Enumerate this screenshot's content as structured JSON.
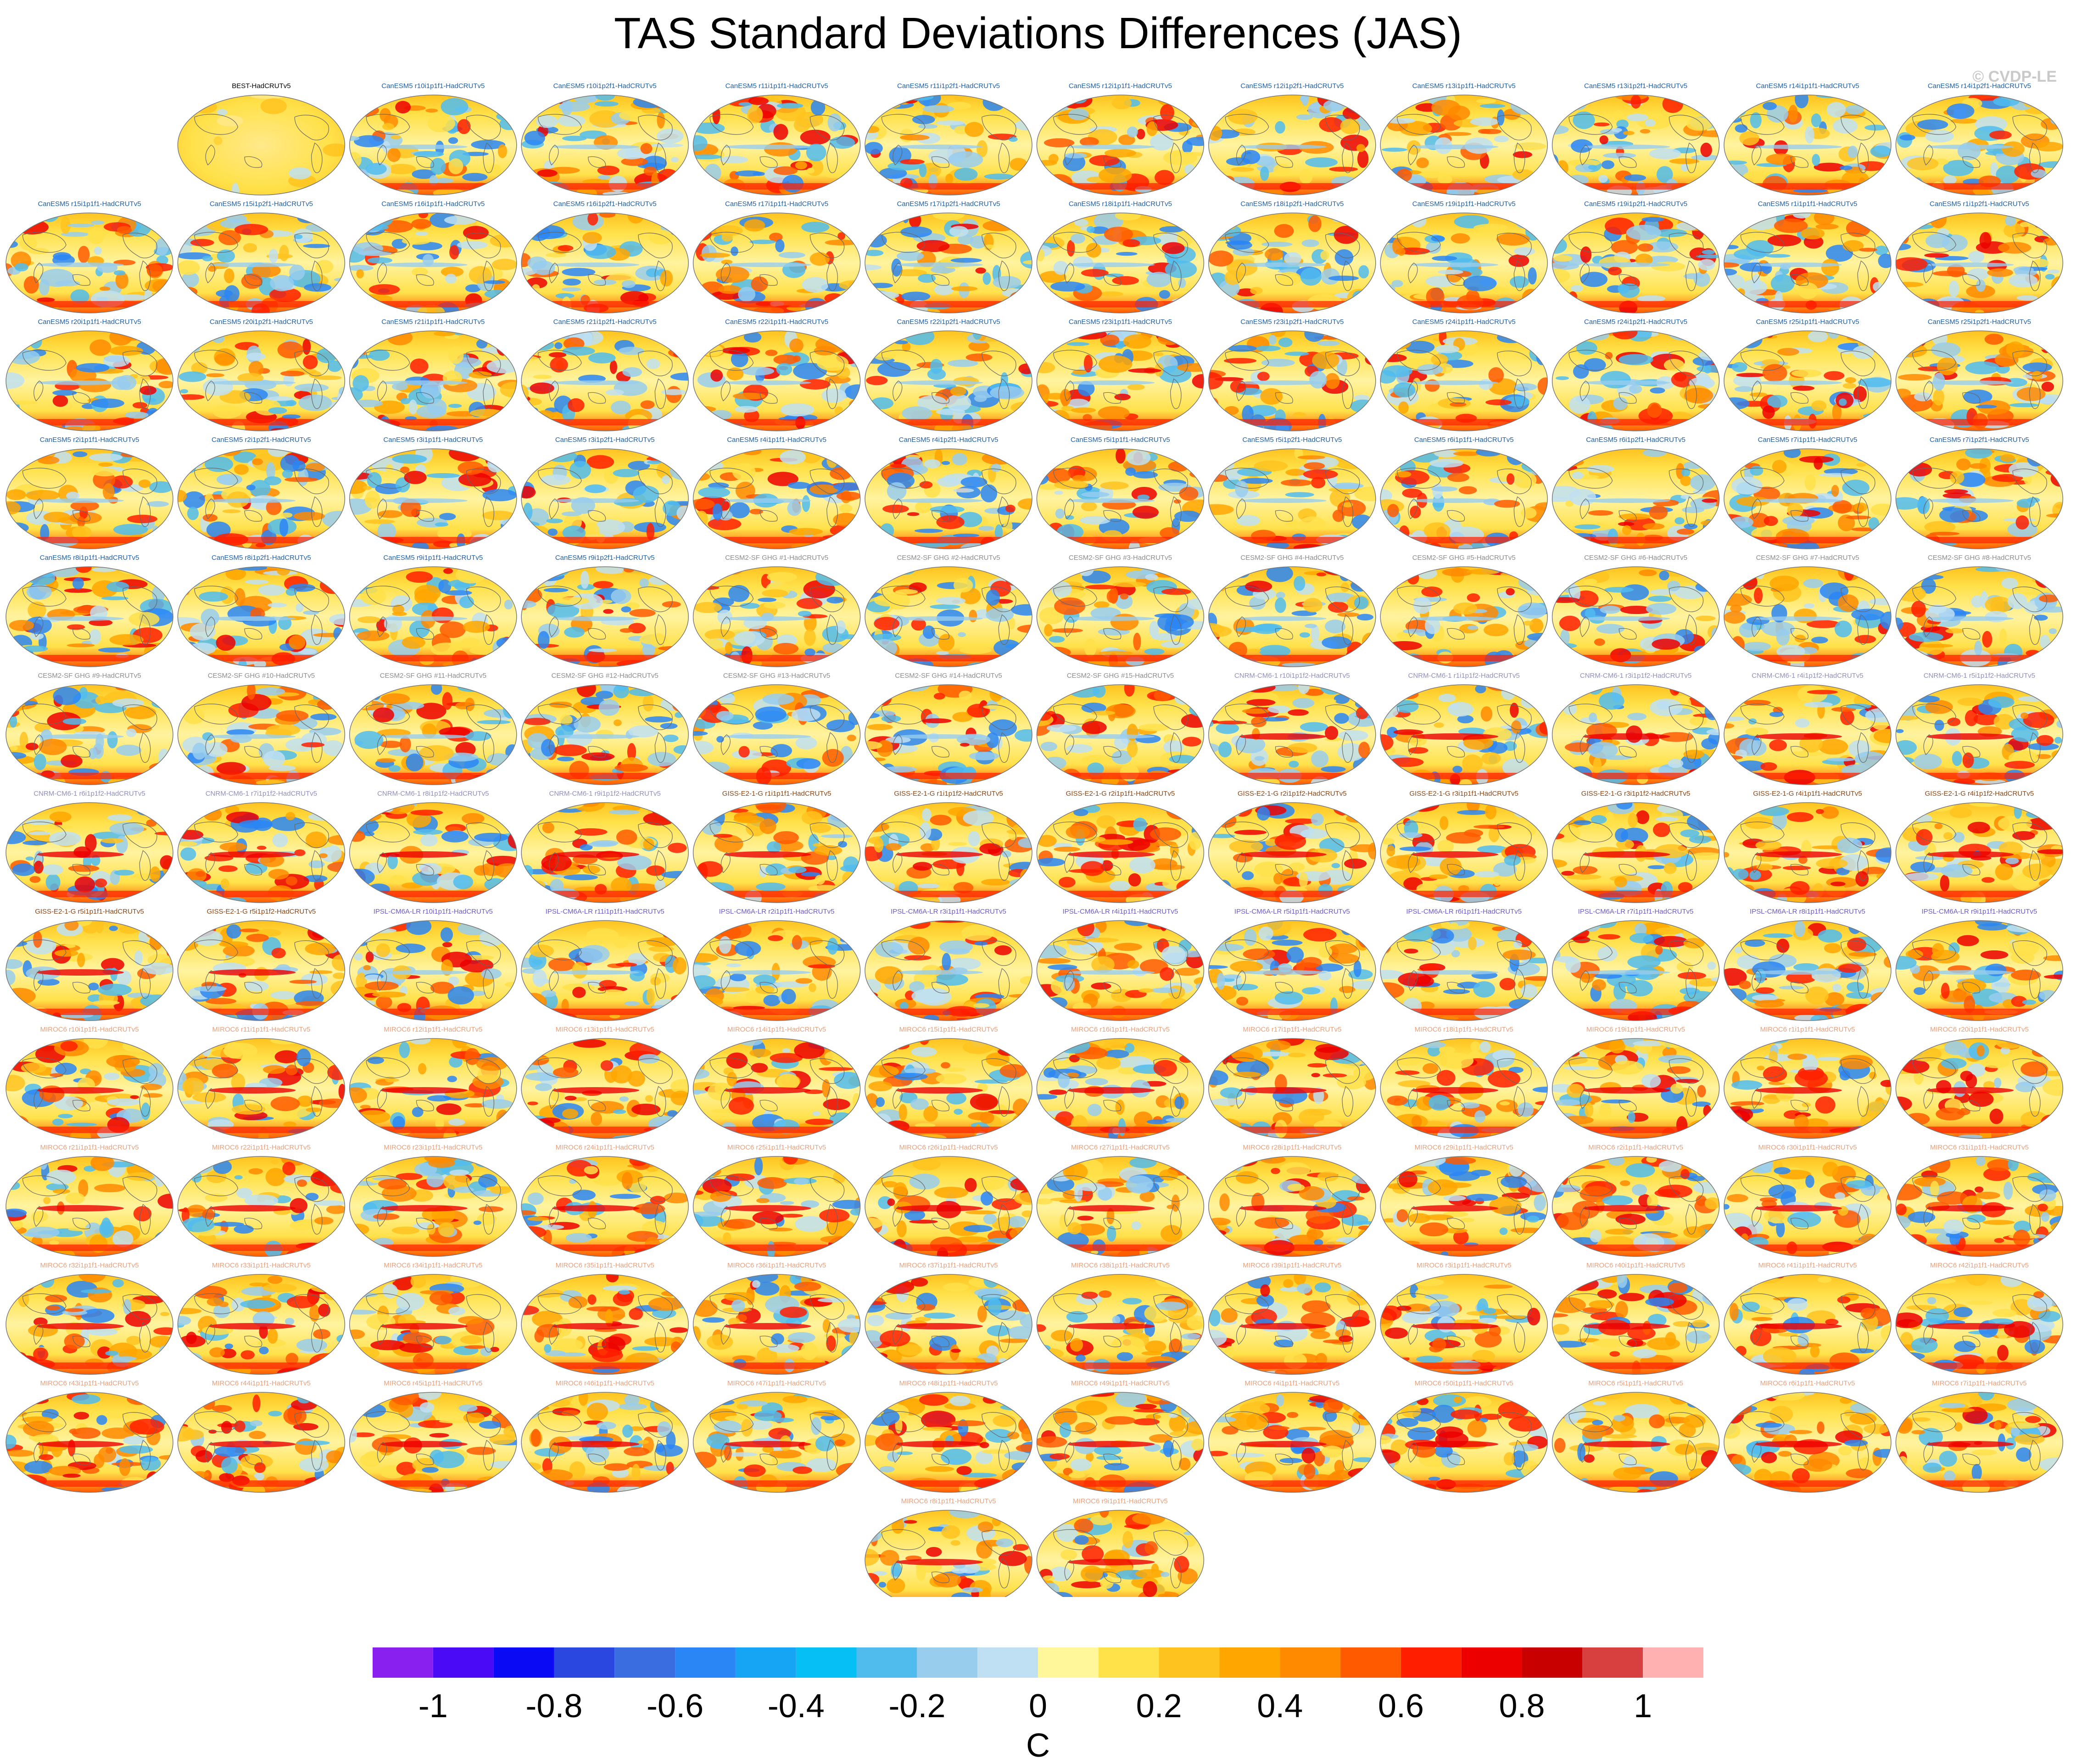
{
  "header": {
    "title": "TAS Standard Deviations Differences (JAS)",
    "credit": "© CVDP-LE"
  },
  "chart_data": {
    "type": "heatmap",
    "title": "TAS Standard Deviations Differences (JAS)",
    "panel_rows": [
      {
        "panels": [
          {
            "label": "BEST-HadCRUTv5",
            "model": "BEST"
          },
          {
            "label": "CanESM5 r10i1p1f1-HadCRUTv5",
            "model": "CanESM5"
          },
          {
            "label": "CanESM5 r10i1p2f1-HadCRUTv5",
            "model": "CanESM5"
          },
          {
            "label": "CanESM5 r11i1p1f1-HadCRUTv5",
            "model": "CanESM5"
          },
          {
            "label": "CanESM5 r11i1p2f1-HadCRUTv5",
            "model": "CanESM5"
          },
          {
            "label": "CanESM5 r12i1p1f1-HadCRUTv5",
            "model": "CanESM5"
          },
          {
            "label": "CanESM5 r12i1p2f1-HadCRUTv5",
            "model": "CanESM5"
          },
          {
            "label": "CanESM5 r13i1p1f1-HadCRUTv5",
            "model": "CanESM5"
          },
          {
            "label": "CanESM5 r13i1p2f1-HadCRUTv5",
            "model": "CanESM5"
          },
          {
            "label": "CanESM5 r14i1p1f1-HadCRUTv5",
            "model": "CanESM5"
          },
          {
            "label": "CanESM5 r14i1p2f1-HadCRUTv5",
            "model": "CanESM5"
          }
        ]
      },
      {
        "panels": [
          {
            "label": "CanESM5 r15i1p1f1-HadCRUTv5",
            "model": "CanESM5"
          },
          {
            "label": "CanESM5 r15i1p2f1-HadCRUTv5",
            "model": "CanESM5"
          },
          {
            "label": "CanESM5 r16i1p1f1-HadCRUTv5",
            "model": "CanESM5"
          },
          {
            "label": "CanESM5 r16i1p2f1-HadCRUTv5",
            "model": "CanESM5"
          },
          {
            "label": "CanESM5 r17i1p1f1-HadCRUTv5",
            "model": "CanESM5"
          },
          {
            "label": "CanESM5 r17i1p2f1-HadCRUTv5",
            "model": "CanESM5"
          },
          {
            "label": "CanESM5 r18i1p1f1-HadCRUTv5",
            "model": "CanESM5"
          },
          {
            "label": "CanESM5 r18i1p2f1-HadCRUTv5",
            "model": "CanESM5"
          },
          {
            "label": "CanESM5 r19i1p1f1-HadCRUTv5",
            "model": "CanESM5"
          },
          {
            "label": "CanESM5 r19i1p2f1-HadCRUTv5",
            "model": "CanESM5"
          },
          {
            "label": "CanESM5 r1i1p1f1-HadCRUTv5",
            "model": "CanESM5"
          },
          {
            "label": "CanESM5 r1i1p2f1-HadCRUTv5",
            "model": "CanESM5"
          }
        ]
      },
      {
        "panels": [
          {
            "label": "CanESM5 r20i1p1f1-HadCRUTv5",
            "model": "CanESM5"
          },
          {
            "label": "CanESM5 r20i1p2f1-HadCRUTv5",
            "model": "CanESM5"
          },
          {
            "label": "CanESM5 r21i1p1f1-HadCRUTv5",
            "model": "CanESM5"
          },
          {
            "label": "CanESM5 r21i1p2f1-HadCRUTv5",
            "model": "CanESM5"
          },
          {
            "label": "CanESM5 r22i1p1f1-HadCRUTv5",
            "model": "CanESM5"
          },
          {
            "label": "CanESM5 r22i1p2f1-HadCRUTv5",
            "model": "CanESM5"
          },
          {
            "label": "CanESM5 r23i1p1f1-HadCRUTv5",
            "model": "CanESM5"
          },
          {
            "label": "CanESM5 r23i1p2f1-HadCRUTv5",
            "model": "CanESM5"
          },
          {
            "label": "CanESM5 r24i1p1f1-HadCRUTv5",
            "model": "CanESM5"
          },
          {
            "label": "CanESM5 r24i1p2f1-HadCRUTv5",
            "model": "CanESM5"
          },
          {
            "label": "CanESM5 r25i1p1f1-HadCRUTv5",
            "model": "CanESM5"
          },
          {
            "label": "CanESM5 r25i1p2f1-HadCRUTv5",
            "model": "CanESM5"
          }
        ]
      },
      {
        "panels": [
          {
            "label": "CanESM5 r2i1p1f1-HadCRUTv5",
            "model": "CanESM5"
          },
          {
            "label": "CanESM5 r2i1p2f1-HadCRUTv5",
            "model": "CanESM5"
          },
          {
            "label": "CanESM5 r3i1p1f1-HadCRUTv5",
            "model": "CanESM5"
          },
          {
            "label": "CanESM5 r3i1p2f1-HadCRUTv5",
            "model": "CanESM5"
          },
          {
            "label": "CanESM5 r4i1p1f1-HadCRUTv5",
            "model": "CanESM5"
          },
          {
            "label": "CanESM5 r4i1p2f1-HadCRUTv5",
            "model": "CanESM5"
          },
          {
            "label": "CanESM5 r5i1p1f1-HadCRUTv5",
            "model": "CanESM5"
          },
          {
            "label": "CanESM5 r5i1p2f1-HadCRUTv5",
            "model": "CanESM5"
          },
          {
            "label": "CanESM5 r6i1p1f1-HadCRUTv5",
            "model": "CanESM5"
          },
          {
            "label": "CanESM5 r6i1p2f1-HadCRUTv5",
            "model": "CanESM5"
          },
          {
            "label": "CanESM5 r7i1p1f1-HadCRUTv5",
            "model": "CanESM5"
          },
          {
            "label": "CanESM5 r7i1p2f1-HadCRUTv5",
            "model": "CanESM5"
          }
        ]
      },
      {
        "panels": [
          {
            "label": "CanESM5 r8i1p1f1-HadCRUTv5",
            "model": "CanESM5"
          },
          {
            "label": "CanESM5 r8i1p2f1-HadCRUTv5",
            "model": "CanESM5"
          },
          {
            "label": "CanESM5 r9i1p1f1-HadCRUTv5",
            "model": "CanESM5"
          },
          {
            "label": "CanESM5 r9i1p2f1-HadCRUTv5",
            "model": "CanESM5"
          },
          {
            "label": "CESM2-SF GHG #1-HadCRUTv5",
            "model": "CESM2"
          },
          {
            "label": "CESM2-SF GHG #2-HadCRUTv5",
            "model": "CESM2"
          },
          {
            "label": "CESM2-SF GHG #3-HadCRUTv5",
            "model": "CESM2"
          },
          {
            "label": "CESM2-SF GHG #4-HadCRUTv5",
            "model": "CESM2"
          },
          {
            "label": "CESM2-SF GHG #5-HadCRUTv5",
            "model": "CESM2"
          },
          {
            "label": "CESM2-SF GHG #6-HadCRUTv5",
            "model": "CESM2"
          },
          {
            "label": "CESM2-SF GHG #7-HadCRUTv5",
            "model": "CESM2"
          },
          {
            "label": "CESM2-SF GHG #8-HadCRUTv5",
            "model": "CESM2"
          }
        ]
      },
      {
        "panels": [
          {
            "label": "CESM2-SF GHG #9-HadCRUTv5",
            "model": "CESM2"
          },
          {
            "label": "CESM2-SF GHG #10-HadCRUTv5",
            "model": "CESM2"
          },
          {
            "label": "CESM2-SF GHG #11-HadCRUTv5",
            "model": "CESM2"
          },
          {
            "label": "CESM2-SF GHG #12-HadCRUTv5",
            "model": "CESM2"
          },
          {
            "label": "CESM2-SF GHG #13-HadCRUTv5",
            "model": "CESM2"
          },
          {
            "label": "CESM2-SF GHG #14-HadCRUTv5",
            "model": "CESM2"
          },
          {
            "label": "CESM2-SF GHG #15-HadCRUTv5",
            "model": "CESM2"
          },
          {
            "label": "CNRM-CM6-1 r10i1p1f2-HadCRUTv5",
            "model": "CNRM"
          },
          {
            "label": "CNRM-CM6-1 r1i1p1f2-HadCRUTv5",
            "model": "CNRM"
          },
          {
            "label": "CNRM-CM6-1 r3i1p1f2-HadCRUTv5",
            "model": "CNRM"
          },
          {
            "label": "CNRM-CM6-1 r4i1p1f2-HadCRUTv5",
            "model": "CNRM"
          },
          {
            "label": "CNRM-CM6-1 r5i1p1f2-HadCRUTv5",
            "model": "CNRM"
          }
        ]
      },
      {
        "panels": [
          {
            "label": "CNRM-CM6-1 r6i1p1f2-HadCRUTv5",
            "model": "CNRM"
          },
          {
            "label": "CNRM-CM6-1 r7i1p1f2-HadCRUTv5",
            "model": "CNRM"
          },
          {
            "label": "CNRM-CM6-1 r8i1p1f2-HadCRUTv5",
            "model": "CNRM"
          },
          {
            "label": "CNRM-CM6-1 r9i1p1f2-HadCRUTv5",
            "model": "CNRM"
          },
          {
            "label": "GISS-E2-1-G r1i1p1f1-HadCRUTv5",
            "model": "GISS"
          },
          {
            "label": "GISS-E2-1-G r1i1p1f2-HadCRUTv5",
            "model": "GISS"
          },
          {
            "label": "GISS-E2-1-G r2i1p1f1-HadCRUTv5",
            "model": "GISS"
          },
          {
            "label": "GISS-E2-1-G r2i1p1f2-HadCRUTv5",
            "model": "GISS"
          },
          {
            "label": "GISS-E2-1-G r3i1p1f1-HadCRUTv5",
            "model": "GISS"
          },
          {
            "label": "GISS-E2-1-G r3i1p1f2-HadCRUTv5",
            "model": "GISS"
          },
          {
            "label": "GISS-E2-1-G r4i1p1f1-HadCRUTv5",
            "model": "GISS"
          },
          {
            "label": "GISS-E2-1-G r4i1p1f2-HadCRUTv5",
            "model": "GISS"
          }
        ]
      },
      {
        "panels": [
          {
            "label": "GISS-E2-1-G r5i1p1f1-HadCRUTv5",
            "model": "GISS"
          },
          {
            "label": "GISS-E2-1-G r5i1p1f2-HadCRUTv5",
            "model": "GISS"
          },
          {
            "label": "IPSL-CM6A-LR r10i1p1f1-HadCRUTv5",
            "model": "IPSL"
          },
          {
            "label": "IPSL-CM6A-LR r11i1p1f1-HadCRUTv5",
            "model": "IPSL"
          },
          {
            "label": "IPSL-CM6A-LR r2i1p1f1-HadCRUTv5",
            "model": "IPSL"
          },
          {
            "label": "IPSL-CM6A-LR r3i1p1f1-HadCRUTv5",
            "model": "IPSL"
          },
          {
            "label": "IPSL-CM6A-LR r4i1p1f1-HadCRUTv5",
            "model": "IPSL"
          },
          {
            "label": "IPSL-CM6A-LR r5i1p1f1-HadCRUTv5",
            "model": "IPSL"
          },
          {
            "label": "IPSL-CM6A-LR r6i1p1f1-HadCRUTv5",
            "model": "IPSL"
          },
          {
            "label": "IPSL-CM6A-LR r7i1p1f1-HadCRUTv5",
            "model": "IPSL"
          },
          {
            "label": "IPSL-CM6A-LR r8i1p1f1-HadCRUTv5",
            "model": "IPSL"
          },
          {
            "label": "IPSL-CM6A-LR r9i1p1f1-HadCRUTv5",
            "model": "IPSL"
          }
        ]
      },
      {
        "panels": [
          {
            "label": "MIROC6 r10i1p1f1-HadCRUTv5",
            "model": "MIROC6"
          },
          {
            "label": "MIROC6 r11i1p1f1-HadCRUTv5",
            "model": "MIROC6"
          },
          {
            "label": "MIROC6 r12i1p1f1-HadCRUTv5",
            "model": "MIROC6"
          },
          {
            "label": "MIROC6 r13i1p1f1-HadCRUTv5",
            "model": "MIROC6"
          },
          {
            "label": "MIROC6 r14i1p1f1-HadCRUTv5",
            "model": "MIROC6"
          },
          {
            "label": "MIROC6 r15i1p1f1-HadCRUTv5",
            "model": "MIROC6"
          },
          {
            "label": "MIROC6 r16i1p1f1-HadCRUTv5",
            "model": "MIROC6"
          },
          {
            "label": "MIROC6 r17i1p1f1-HadCRUTv5",
            "model": "MIROC6"
          },
          {
            "label": "MIROC6 r18i1p1f1-HadCRUTv5",
            "model": "MIROC6"
          },
          {
            "label": "MIROC6 r19i1p1f1-HadCRUTv5",
            "model": "MIROC6"
          },
          {
            "label": "MIROC6 r1i1p1f1-HadCRUTv5",
            "model": "MIROC6"
          },
          {
            "label": "MIROC6 r20i1p1f1-HadCRUTv5",
            "model": "MIROC6"
          }
        ]
      },
      {
        "panels": [
          {
            "label": "MIROC6 r21i1p1f1-HadCRUTv5",
            "model": "MIROC6"
          },
          {
            "label": "MIROC6 r22i1p1f1-HadCRUTv5",
            "model": "MIROC6"
          },
          {
            "label": "MIROC6 r23i1p1f1-HadCRUTv5",
            "model": "MIROC6"
          },
          {
            "label": "MIROC6 r24i1p1f1-HadCRUTv5",
            "model": "MIROC6"
          },
          {
            "label": "MIROC6 r25i1p1f1-HadCRUTv5",
            "model": "MIROC6"
          },
          {
            "label": "MIROC6 r26i1p1f1-HadCRUTv5",
            "model": "MIROC6"
          },
          {
            "label": "MIROC6 r27i1p1f1-HadCRUTv5",
            "model": "MIROC6"
          },
          {
            "label": "MIROC6 r28i1p1f1-HadCRUTv5",
            "model": "MIROC6"
          },
          {
            "label": "MIROC6 r29i1p1f1-HadCRUTv5",
            "model": "MIROC6"
          },
          {
            "label": "MIROC6 r2i1p1f1-HadCRUTv5",
            "model": "MIROC6"
          },
          {
            "label": "MIROC6 r30i1p1f1-HadCRUTv5",
            "model": "MIROC6"
          },
          {
            "label": "MIROC6 r31i1p1f1-HadCRUTv5",
            "model": "MIROC6"
          }
        ]
      },
      {
        "panels": [
          {
            "label": "MIROC6 r32i1p1f1-HadCRUTv5",
            "model": "MIROC6"
          },
          {
            "label": "MIROC6 r33i1p1f1-HadCRUTv5",
            "model": "MIROC6"
          },
          {
            "label": "MIROC6 r34i1p1f1-HadCRUTv5",
            "model": "MIROC6"
          },
          {
            "label": "MIROC6 r35i1p1f1-HadCRUTv5",
            "model": "MIROC6"
          },
          {
            "label": "MIROC6 r36i1p1f1-HadCRUTv5",
            "model": "MIROC6"
          },
          {
            "label": "MIROC6 r37i1p1f1-HadCRUTv5",
            "model": "MIROC6"
          },
          {
            "label": "MIROC6 r38i1p1f1-HadCRUTv5",
            "model": "MIROC6"
          },
          {
            "label": "MIROC6 r39i1p1f1-HadCRUTv5",
            "model": "MIROC6"
          },
          {
            "label": "MIROC6 r3i1p1f1-HadCRUTv5",
            "model": "MIROC6"
          },
          {
            "label": "MIROC6 r40i1p1f1-HadCRUTv5",
            "model": "MIROC6"
          },
          {
            "label": "MIROC6 r41i1p1f1-HadCRUTv5",
            "model": "MIROC6"
          },
          {
            "label": "MIROC6 r42i1p1f1-HadCRUTv5",
            "model": "MIROC6"
          }
        ]
      },
      {
        "panels": [
          {
            "label": "MIROC6 r43i1p1f1-HadCRUTv5",
            "model": "MIROC6"
          },
          {
            "label": "MIROC6 r44i1p1f1-HadCRUTv5",
            "model": "MIROC6"
          },
          {
            "label": "MIROC6 r45i1p1f1-HadCRUTv5",
            "model": "MIROC6"
          },
          {
            "label": "MIROC6 r46i1p1f1-HadCRUTv5",
            "model": "MIROC6"
          },
          {
            "label": "MIROC6 r47i1p1f1-HadCRUTv5",
            "model": "MIROC6"
          },
          {
            "label": "MIROC6 r48i1p1f1-HadCRUTv5",
            "model": "MIROC6"
          },
          {
            "label": "MIROC6 r49i1p1f1-HadCRUTv5",
            "model": "MIROC6"
          },
          {
            "label": "MIROC6 r4i1p1f1-HadCRUTv5",
            "model": "MIROC6"
          },
          {
            "label": "MIROC6 r50i1p1f1-HadCRUTv5",
            "model": "MIROC6"
          },
          {
            "label": "MIROC6 r5i1p1f1-HadCRUTv5",
            "model": "MIROC6"
          },
          {
            "label": "MIROC6 r6i1p1f1-HadCRUTv5",
            "model": "MIROC6"
          },
          {
            "label": "MIROC6 r7i1p1f1-HadCRUTv5",
            "model": "MIROC6"
          }
        ]
      },
      {
        "panels": [
          {
            "label": "MIROC6 r8i1p1f1-HadCRUTv5",
            "model": "MIROC6"
          },
          {
            "label": "MIROC6 r9i1p1f1-HadCRUTv5",
            "model": "MIROC6"
          }
        ]
      }
    ],
    "model_label_colors": {
      "BEST": "#000000",
      "CanESM5": "#1f5fa8",
      "CESM2": "#8c8c8c",
      "CNRM": "#8f8fbf",
      "GISS": "#8b4513",
      "IPSL": "#6a5acd",
      "MIROC6": "#e8a07c"
    },
    "colorbar": {
      "levels": [
        -1.1,
        -1,
        -0.9,
        -0.8,
        -0.7,
        -0.6,
        -0.5,
        -0.4,
        -0.3,
        -0.2,
        -0.1,
        0,
        0.1,
        0.2,
        0.3,
        0.4,
        0.5,
        0.6,
        0.7,
        0.8,
        0.9,
        1,
        1.1
      ],
      "colors": [
        "#8a20f0",
        "#4a0af5",
        "#0a0af5",
        "#2a48e0",
        "#3a6ee0",
        "#2a86f5",
        "#16a4f5",
        "#06c0f5",
        "#50bcee",
        "#98cdee",
        "#bfe0f2",
        "#fff799",
        "#ffe14a",
        "#ffc31f",
        "#ffa600",
        "#ff8a00",
        "#ff5a00",
        "#ff1e00",
        "#ec0000",
        "#c80000",
        "#d84040",
        "#ffb0b0"
      ],
      "tick_labels": [
        "-1",
        "-0.8",
        "-0.6",
        "-0.4",
        "-0.2",
        "0",
        "0.2",
        "0.4",
        "0.6",
        "0.8",
        "1"
      ],
      "tick_values": [
        -1,
        -0.8,
        -0.6,
        -0.4,
        -0.2,
        0,
        0.2,
        0.4,
        0.6,
        0.8,
        1
      ],
      "units": "C"
    }
  }
}
